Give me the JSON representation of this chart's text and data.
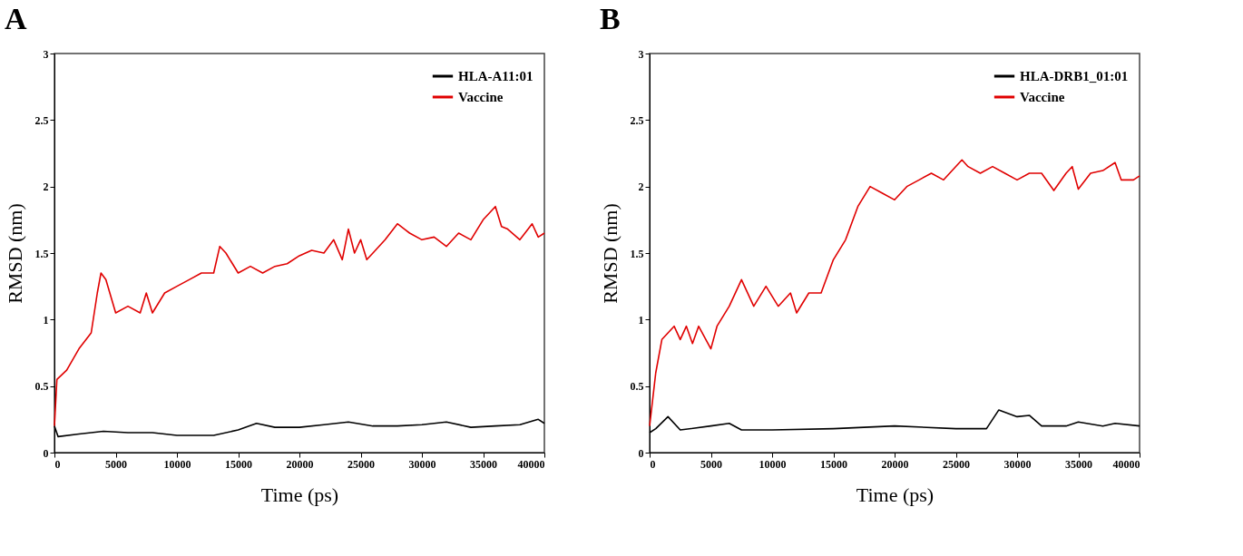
{
  "chart_data": [
    {
      "type": "line",
      "title": "A",
      "xlabel": "Time (ps)",
      "ylabel": "RMSD (nm)",
      "xlim": [
        0,
        40000
      ],
      "xticks": [
        0,
        5000,
        10000,
        15000,
        20000,
        25000,
        30000,
        35000,
        40000
      ],
      "ylim": [
        0,
        3
      ],
      "yticks": [
        0,
        0.5,
        1,
        1.5,
        2,
        2.5,
        3
      ],
      "legend": "top right",
      "series": [
        {
          "name": "HLA-A11:01",
          "color": "#000000",
          "x": [
            0,
            300,
            2000,
            4000,
            6000,
            8000,
            10000,
            13000,
            15000,
            16500,
            18000,
            20000,
            22000,
            24000,
            26000,
            28000,
            30000,
            32000,
            34000,
            36000,
            38000,
            39500,
            40000
          ],
          "values": [
            0.2,
            0.12,
            0.14,
            0.16,
            0.15,
            0.15,
            0.13,
            0.13,
            0.17,
            0.22,
            0.19,
            0.19,
            0.21,
            0.23,
            0.2,
            0.2,
            0.21,
            0.23,
            0.19,
            0.2,
            0.21,
            0.25,
            0.22
          ]
        },
        {
          "name": "Vaccine",
          "color": "#e00000",
          "x": [
            0,
            200,
            1000,
            2000,
            3000,
            3500,
            3800,
            4200,
            5000,
            6000,
            7000,
            7500,
            8000,
            9000,
            10000,
            11000,
            12000,
            13000,
            13500,
            14000,
            15000,
            16000,
            17000,
            18000,
            19000,
            20000,
            21000,
            22000,
            22800,
            23500,
            24000,
            24500,
            25000,
            25500,
            26000,
            27000,
            28000,
            29000,
            30000,
            31000,
            32000,
            33000,
            34000,
            35000,
            36000,
            36500,
            37000,
            38000,
            39000,
            39500,
            40000
          ],
          "values": [
            0.2,
            0.55,
            0.62,
            0.78,
            0.9,
            1.2,
            1.35,
            1.3,
            1.05,
            1.1,
            1.05,
            1.2,
            1.05,
            1.2,
            1.25,
            1.3,
            1.35,
            1.35,
            1.55,
            1.5,
            1.35,
            1.4,
            1.35,
            1.4,
            1.42,
            1.48,
            1.52,
            1.5,
            1.6,
            1.45,
            1.68,
            1.5,
            1.6,
            1.45,
            1.5,
            1.6,
            1.72,
            1.65,
            1.6,
            1.62,
            1.55,
            1.65,
            1.6,
            1.75,
            1.85,
            1.7,
            1.68,
            1.6,
            1.72,
            1.62,
            1.65
          ]
        }
      ]
    },
    {
      "type": "line",
      "title": "B",
      "xlabel": "Time (ps)",
      "ylabel": "RMSD (nm)",
      "xlim": [
        0,
        40000
      ],
      "xticks": [
        0,
        5000,
        10000,
        15000,
        20000,
        25000,
        30000,
        35000,
        40000
      ],
      "ylim": [
        0,
        3
      ],
      "yticks": [
        0,
        0.5,
        1,
        1.5,
        2,
        2.5,
        3
      ],
      "legend": "top right",
      "series": [
        {
          "name": "HLA-DRB1_01:01",
          "color": "#000000",
          "x": [
            0,
            500,
            1500,
            2500,
            5000,
            6500,
            7500,
            10000,
            15000,
            20000,
            25000,
            27500,
            28500,
            30000,
            31000,
            32000,
            34000,
            35000,
            37000,
            38000,
            40000
          ],
          "values": [
            0.15,
            0.18,
            0.27,
            0.17,
            0.2,
            0.22,
            0.17,
            0.17,
            0.18,
            0.2,
            0.18,
            0.18,
            0.32,
            0.27,
            0.28,
            0.2,
            0.2,
            0.23,
            0.2,
            0.22,
            0.2
          ]
        },
        {
          "name": "Vaccine",
          "color": "#e00000",
          "x": [
            0,
            500,
            1000,
            1500,
            2000,
            2500,
            3000,
            3500,
            4000,
            5000,
            5500,
            6500,
            7500,
            8500,
            9500,
            10500,
            11500,
            12000,
            13000,
            14000,
            15000,
            16000,
            17000,
            18000,
            19000,
            20000,
            21000,
            22000,
            23000,
            24000,
            25500,
            26000,
            27000,
            28000,
            29000,
            30000,
            31000,
            32000,
            33000,
            34000,
            34500,
            35000,
            36000,
            37000,
            38000,
            38500,
            39500,
            40000
          ],
          "values": [
            0.2,
            0.6,
            0.85,
            0.9,
            0.95,
            0.85,
            0.95,
            0.82,
            0.95,
            0.78,
            0.95,
            1.1,
            1.3,
            1.1,
            1.25,
            1.1,
            1.2,
            1.05,
            1.2,
            1.2,
            1.45,
            1.6,
            1.85,
            2.0,
            1.95,
            1.9,
            2.0,
            2.05,
            2.1,
            2.05,
            2.2,
            2.15,
            2.1,
            2.15,
            2.1,
            2.05,
            2.1,
            2.1,
            1.97,
            2.1,
            2.15,
            1.98,
            2.1,
            2.12,
            2.18,
            2.05,
            2.05,
            2.08
          ]
        }
      ]
    }
  ]
}
